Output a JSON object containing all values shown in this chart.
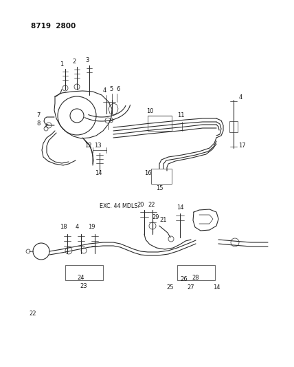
{
  "title_text": "8719  2800",
  "title_fontsize": 8,
  "bg_color": "#ffffff",
  "line_color": "#2a2a2a",
  "label_fontsize": 6.0,
  "figsize": [
    4.28,
    5.33
  ],
  "dpi": 100
}
